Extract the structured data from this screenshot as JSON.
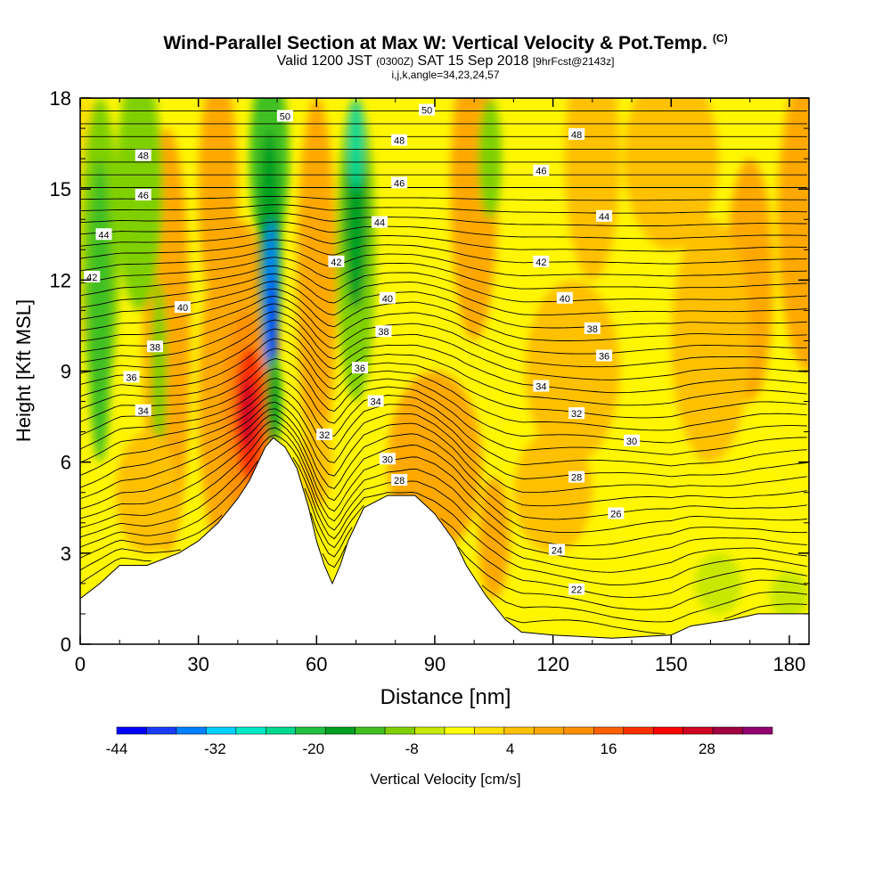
{
  "header": {
    "title": "Wind-Parallel Section at Max W: Vertical Velocity & Pot.Temp.",
    "copyright": "(C)",
    "valid_prefix": "Valid 1200 JST",
    "valid_z": "(0300Z)",
    "valid_date": "SAT 15 Sep 2018",
    "valid_fcst": "[9hrFcst@2143z]",
    "grid_info": "i,j,k,angle=34,23,24,57"
  },
  "chart_data": {
    "type": "heatmap",
    "xlabel": "Distance [nm]",
    "ylabel": "Height [Kft MSL]",
    "xlim": [
      0,
      185
    ],
    "ylim": [
      0,
      18
    ],
    "x_ticks": [
      0,
      30,
      60,
      90,
      120,
      150,
      180
    ],
    "y_ticks": [
      0,
      3,
      6,
      9,
      12,
      15,
      18
    ],
    "colorbar": {
      "label": "Vertical Velocity [cm/s]",
      "tick_labels": [
        "-44",
        "-32",
        "-20",
        "-8",
        "4",
        "16",
        "28"
      ],
      "range": [
        -44,
        36
      ],
      "step": 4,
      "colors": [
        "#0000ff",
        "#1a3cff",
        "#0080ff",
        "#00d0ff",
        "#00e8c8",
        "#00d890",
        "#20c040",
        "#00a020",
        "#40c020",
        "#80d000",
        "#c8e800",
        "#ffff00",
        "#ffe000",
        "#ffc000",
        "#ffa800",
        "#ff9000",
        "#ff6000",
        "#ff3000",
        "#ff0000",
        "#d00020",
        "#a00040",
        "#900070"
      ]
    },
    "terrain": [
      [
        0,
        1.5
      ],
      [
        5,
        2
      ],
      [
        10,
        2.6
      ],
      [
        17,
        2.6
      ],
      [
        25,
        3
      ],
      [
        30,
        3.4
      ],
      [
        35,
        4
      ],
      [
        40,
        4.8
      ],
      [
        43,
        5.4
      ],
      [
        47,
        6.5
      ],
      [
        49,
        6.8
      ],
      [
        52,
        6.5
      ],
      [
        55,
        5.8
      ],
      [
        58,
        4.5
      ],
      [
        60,
        3.4
      ],
      [
        62,
        2.6
      ],
      [
        64,
        2.0
      ],
      [
        66,
        2.6
      ],
      [
        68,
        3.4
      ],
      [
        72,
        4.5
      ],
      [
        78,
        4.9
      ],
      [
        85,
        4.9
      ],
      [
        90,
        4.3
      ],
      [
        95,
        3.4
      ],
      [
        98,
        2.6
      ],
      [
        103,
        1.6
      ],
      [
        108,
        0.8
      ],
      [
        112,
        0.4
      ],
      [
        120,
        0.3
      ],
      [
        135,
        0.2
      ],
      [
        150,
        0.3
      ],
      [
        155,
        0.6
      ],
      [
        165,
        0.8
      ],
      [
        172,
        1.0
      ],
      [
        180,
        1.0
      ],
      [
        185,
        1.0
      ]
    ],
    "theta_contours": {
      "unit": "deg C",
      "labels": [
        {
          "text": "50",
          "x": 52,
          "y": 17.4
        },
        {
          "text": "50",
          "x": 88,
          "y": 17.6
        },
        {
          "text": "48",
          "x": 16,
          "y": 16.1
        },
        {
          "text": "48",
          "x": 81,
          "y": 16.6
        },
        {
          "text": "48",
          "x": 126,
          "y": 16.8
        },
        {
          "text": "46",
          "x": 16,
          "y": 14.8
        },
        {
          "text": "46",
          "x": 81,
          "y": 15.2
        },
        {
          "text": "46",
          "x": 117,
          "y": 15.6
        },
        {
          "text": "44",
          "x": 6,
          "y": 13.5
        },
        {
          "text": "44",
          "x": 76,
          "y": 13.9
        },
        {
          "text": "44",
          "x": 133,
          "y": 14.1
        },
        {
          "text": "42",
          "x": 3,
          "y": 12.1
        },
        {
          "text": "42",
          "x": 65,
          "y": 12.6
        },
        {
          "text": "42",
          "x": 117,
          "y": 12.6
        },
        {
          "text": "40",
          "x": 26,
          "y": 11.1
        },
        {
          "text": "40",
          "x": 78,
          "y": 11.4
        },
        {
          "text": "40",
          "x": 123,
          "y": 11.4
        },
        {
          "text": "38",
          "x": 19,
          "y": 9.8
        },
        {
          "text": "38",
          "x": 77,
          "y": 10.3
        },
        {
          "text": "38",
          "x": 130,
          "y": 10.4
        },
        {
          "text": "36",
          "x": 13,
          "y": 8.8
        },
        {
          "text": "36",
          "x": 71,
          "y": 9.1
        },
        {
          "text": "36",
          "x": 133,
          "y": 9.5
        },
        {
          "text": "34",
          "x": 16,
          "y": 7.7
        },
        {
          "text": "34",
          "x": 75,
          "y": 8.0
        },
        {
          "text": "34",
          "x": 117,
          "y": 8.5
        },
        {
          "text": "32",
          "x": 62,
          "y": 6.9
        },
        {
          "text": "32",
          "x": 126,
          "y": 7.6
        },
        {
          "text": "30",
          "x": 78,
          "y": 6.1
        },
        {
          "text": "30",
          "x": 140,
          "y": 6.7
        },
        {
          "text": "28",
          "x": 81,
          "y": 5.4
        },
        {
          "text": "28",
          "x": 126,
          "y": 5.5
        },
        {
          "text": "26",
          "x": 136,
          "y": 4.3
        },
        {
          "text": "24",
          "x": 121,
          "y": 3.1
        },
        {
          "text": "22",
          "x": 126,
          "y": 1.8
        }
      ]
    },
    "features": {
      "updraft_max_cmps": 36,
      "updraft_center": [
        42,
        7.8
      ],
      "downdraft_min_cmps": -44,
      "downdraft_center": [
        49,
        11
      ]
    }
  }
}
